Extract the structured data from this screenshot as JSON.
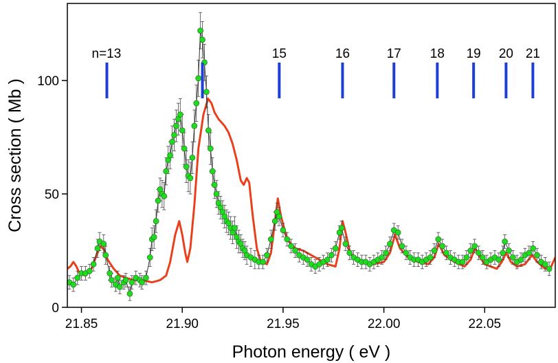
{
  "chart_data": {
    "type": "scatter",
    "x_label": "Photon energy  ( eV )",
    "y_label": "Cross section  ( Mb )",
    "xlim": [
      21.843,
      22.085
    ],
    "ylim": [
      0,
      134
    ],
    "xticks": [
      21.85,
      {
        "value": 21.9,
        "label": "21.90"
      },
      21.95,
      {
        "value": 22.0,
        "label": "22.00"
      },
      22.05
    ],
    "yticks": [
      0,
      50,
      100
    ],
    "levels": {
      "color": "#1e3fd6",
      "labels": [
        "n=13",
        null,
        "15",
        "16",
        "17",
        "18",
        "19",
        "20",
        "21"
      ],
      "x": [
        21.8626,
        21.91,
        21.9481,
        21.9795,
        22.005,
        22.0265,
        22.0445,
        22.0606,
        22.0739
      ]
    },
    "series": [
      {
        "type": "line",
        "color": "#e8401c",
        "x": [
          21.843,
          21.8445,
          21.846,
          21.8475,
          21.849,
          21.852,
          21.855,
          21.8575,
          21.8595,
          21.8615,
          21.863,
          21.866,
          21.869,
          21.872,
          21.876,
          21.88,
          21.885,
          21.889,
          21.892,
          21.894,
          21.8965,
          21.8985,
          21.9,
          21.9015,
          21.9025,
          21.904,
          21.906,
          21.908,
          21.9105,
          21.9128,
          21.9145,
          21.916,
          21.918,
          21.921,
          21.923,
          21.925,
          21.927,
          21.929,
          21.9305,
          21.932,
          21.9332,
          21.935,
          21.937,
          21.939,
          21.942,
          21.944,
          21.946,
          21.9474,
          21.949,
          21.952,
          21.956,
          21.96,
          21.966,
          21.972,
          21.976,
          21.978,
          21.9795,
          21.981,
          21.983,
          21.985,
          21.99,
          21.995,
          22.0,
          22.003,
          22.0055,
          22.008,
          22.012,
          22.017,
          22.022,
          22.025,
          22.0272,
          22.03,
          22.035,
          22.04,
          22.043,
          22.0452,
          22.047,
          22.05,
          22.056,
          22.0585,
          22.0606,
          22.063,
          22.066,
          22.07,
          22.0735,
          22.076,
          22.08,
          22.083,
          22.085
        ],
        "values": [
          17,
          18,
          20,
          18,
          15,
          14,
          17,
          23,
          27,
          25,
          21,
          17,
          14,
          13,
          12,
          12,
          11,
          12,
          14,
          20,
          32,
          38,
          32,
          24,
          20,
          26,
          45,
          70,
          85,
          92,
          90,
          86,
          83,
          80,
          77,
          72,
          65,
          56,
          54,
          57,
          55,
          40,
          26,
          20,
          19,
          24,
          38,
          48,
          40,
          30,
          26,
          25,
          22,
          19,
          18,
          26,
          38,
          33,
          25,
          22,
          20,
          19,
          20,
          24,
          32,
          26,
          22,
          20,
          19,
          22,
          28,
          23,
          20,
          18,
          21,
          26,
          23,
          19,
          17,
          20,
          24,
          20,
          18,
          19,
          23,
          20,
          17,
          18,
          22
        ]
      },
      {
        "type": "scatter",
        "color": "#1fdc1f",
        "line_color": "#333333",
        "x": [
          21.844,
          21.846,
          21.848,
          21.85,
          21.852,
          21.854,
          21.856,
          21.858,
          21.859,
          21.861,
          21.862,
          21.864,
          21.865,
          21.867,
          21.868,
          21.869,
          21.871,
          21.872,
          21.874,
          21.875,
          21.877,
          21.879,
          21.88,
          21.882,
          21.884,
          21.885,
          21.886,
          21.887,
          21.888,
          21.889,
          21.89,
          21.891,
          21.892,
          21.893,
          21.894,
          21.895,
          21.896,
          21.897,
          21.898,
          21.899,
          21.9,
          21.901,
          21.902,
          21.903,
          21.904,
          21.905,
          21.906,
          21.907,
          21.908,
          21.909,
          21.91,
          21.911,
          21.912,
          21.913,
          21.914,
          21.915,
          21.916,
          21.917,
          21.918,
          21.919,
          21.92,
          21.921,
          21.922,
          21.923,
          21.924,
          21.925,
          21.926,
          21.927,
          21.928,
          21.929,
          21.93,
          21.931,
          21.932,
          21.934,
          21.936,
          21.938,
          21.94,
          21.942,
          21.944,
          21.946,
          21.947,
          21.948,
          21.95,
          21.952,
          21.954,
          21.956,
          21.958,
          21.96,
          21.962,
          21.964,
          21.966,
          21.968,
          21.97,
          21.972,
          21.974,
          21.976,
          21.978,
          21.979,
          21.981,
          21.983,
          21.985,
          21.987,
          21.989,
          21.991,
          21.993,
          21.995,
          21.997,
          21.999,
          22.001,
          22.003,
          22.005,
          22.007,
          22.009,
          22.011,
          22.013,
          22.015,
          22.017,
          22.019,
          22.021,
          22.023,
          22.025,
          22.027,
          22.029,
          22.031,
          22.033,
          22.035,
          22.037,
          22.039,
          22.041,
          22.043,
          22.045,
          22.047,
          22.049,
          22.051,
          22.053,
          22.055,
          22.057,
          22.059,
          22.06,
          22.062,
          22.064,
          22.066,
          22.068,
          22.07,
          22.072,
          22.074,
          22.076,
          22.078,
          22.08,
          22.082
        ],
        "values": [
          11,
          10,
          13,
          15,
          15,
          16,
          19,
          26,
          29,
          28,
          23,
          15,
          12,
          10,
          13,
          9,
          11,
          12,
          6,
          11,
          13,
          12,
          11,
          13,
          22,
          30,
          31,
          38,
          47,
          52,
          50,
          49,
          60,
          65,
          67,
          73,
          76,
          80,
          83,
          85,
          78,
          70,
          62,
          58,
          57,
          66,
          80,
          90,
          101,
          122,
          118,
          108,
          95,
          78,
          70,
          60,
          54,
          50,
          46,
          44,
          42,
          40,
          38,
          37,
          35,
          33,
          35,
          31,
          29,
          28,
          26,
          25,
          23,
          22,
          21,
          20,
          20,
          23,
          30,
          38,
          42,
          40,
          34,
          30,
          27,
          25,
          23,
          22,
          21,
          19,
          18,
          19,
          20,
          21,
          23,
          26,
          33,
          35,
          28,
          24,
          22,
          21,
          20,
          20,
          19,
          20,
          21,
          22,
          24,
          28,
          34,
          33,
          27,
          24,
          22,
          21,
          21,
          20,
          21,
          22,
          25,
          30,
          27,
          24,
          22,
          21,
          20,
          20,
          22,
          25,
          27,
          24,
          22,
          20,
          21,
          22,
          21,
          24,
          29,
          25,
          22,
          20,
          21,
          23,
          24,
          26,
          23,
          20,
          19,
          17
        ],
        "errors": [
          3,
          3,
          3,
          3,
          3,
          3,
          3,
          4,
          4,
          4,
          4,
          3,
          3,
          3,
          3,
          3,
          3,
          3,
          3,
          3,
          3,
          3,
          3,
          3,
          4,
          5,
          5,
          5,
          5,
          5,
          6,
          6,
          6,
          6,
          6,
          7,
          7,
          7,
          7,
          7,
          7,
          7,
          7,
          7,
          7,
          7,
          7,
          8,
          8,
          8,
          8,
          8,
          7,
          7,
          7,
          6,
          6,
          6,
          5,
          5,
          5,
          5,
          5,
          5,
          5,
          5,
          5,
          5,
          5,
          4,
          4,
          4,
          4,
          4,
          4,
          3,
          3,
          3,
          4,
          4,
          4,
          4,
          3,
          3,
          3,
          3,
          3,
          3,
          3,
          3,
          3,
          3,
          3,
          3,
          3,
          3,
          3,
          3,
          3,
          3,
          3,
          3,
          3,
          3,
          3,
          3,
          3,
          3,
          3,
          3,
          3,
          3,
          3,
          3,
          3,
          3,
          3,
          3,
          3,
          3,
          3,
          3,
          3,
          3,
          3,
          3,
          3,
          3,
          3,
          3,
          3,
          3,
          3,
          3,
          3,
          3,
          3,
          3,
          3,
          3,
          3,
          3,
          3,
          3,
          3,
          3,
          3,
          3,
          3,
          3
        ]
      }
    ]
  }
}
